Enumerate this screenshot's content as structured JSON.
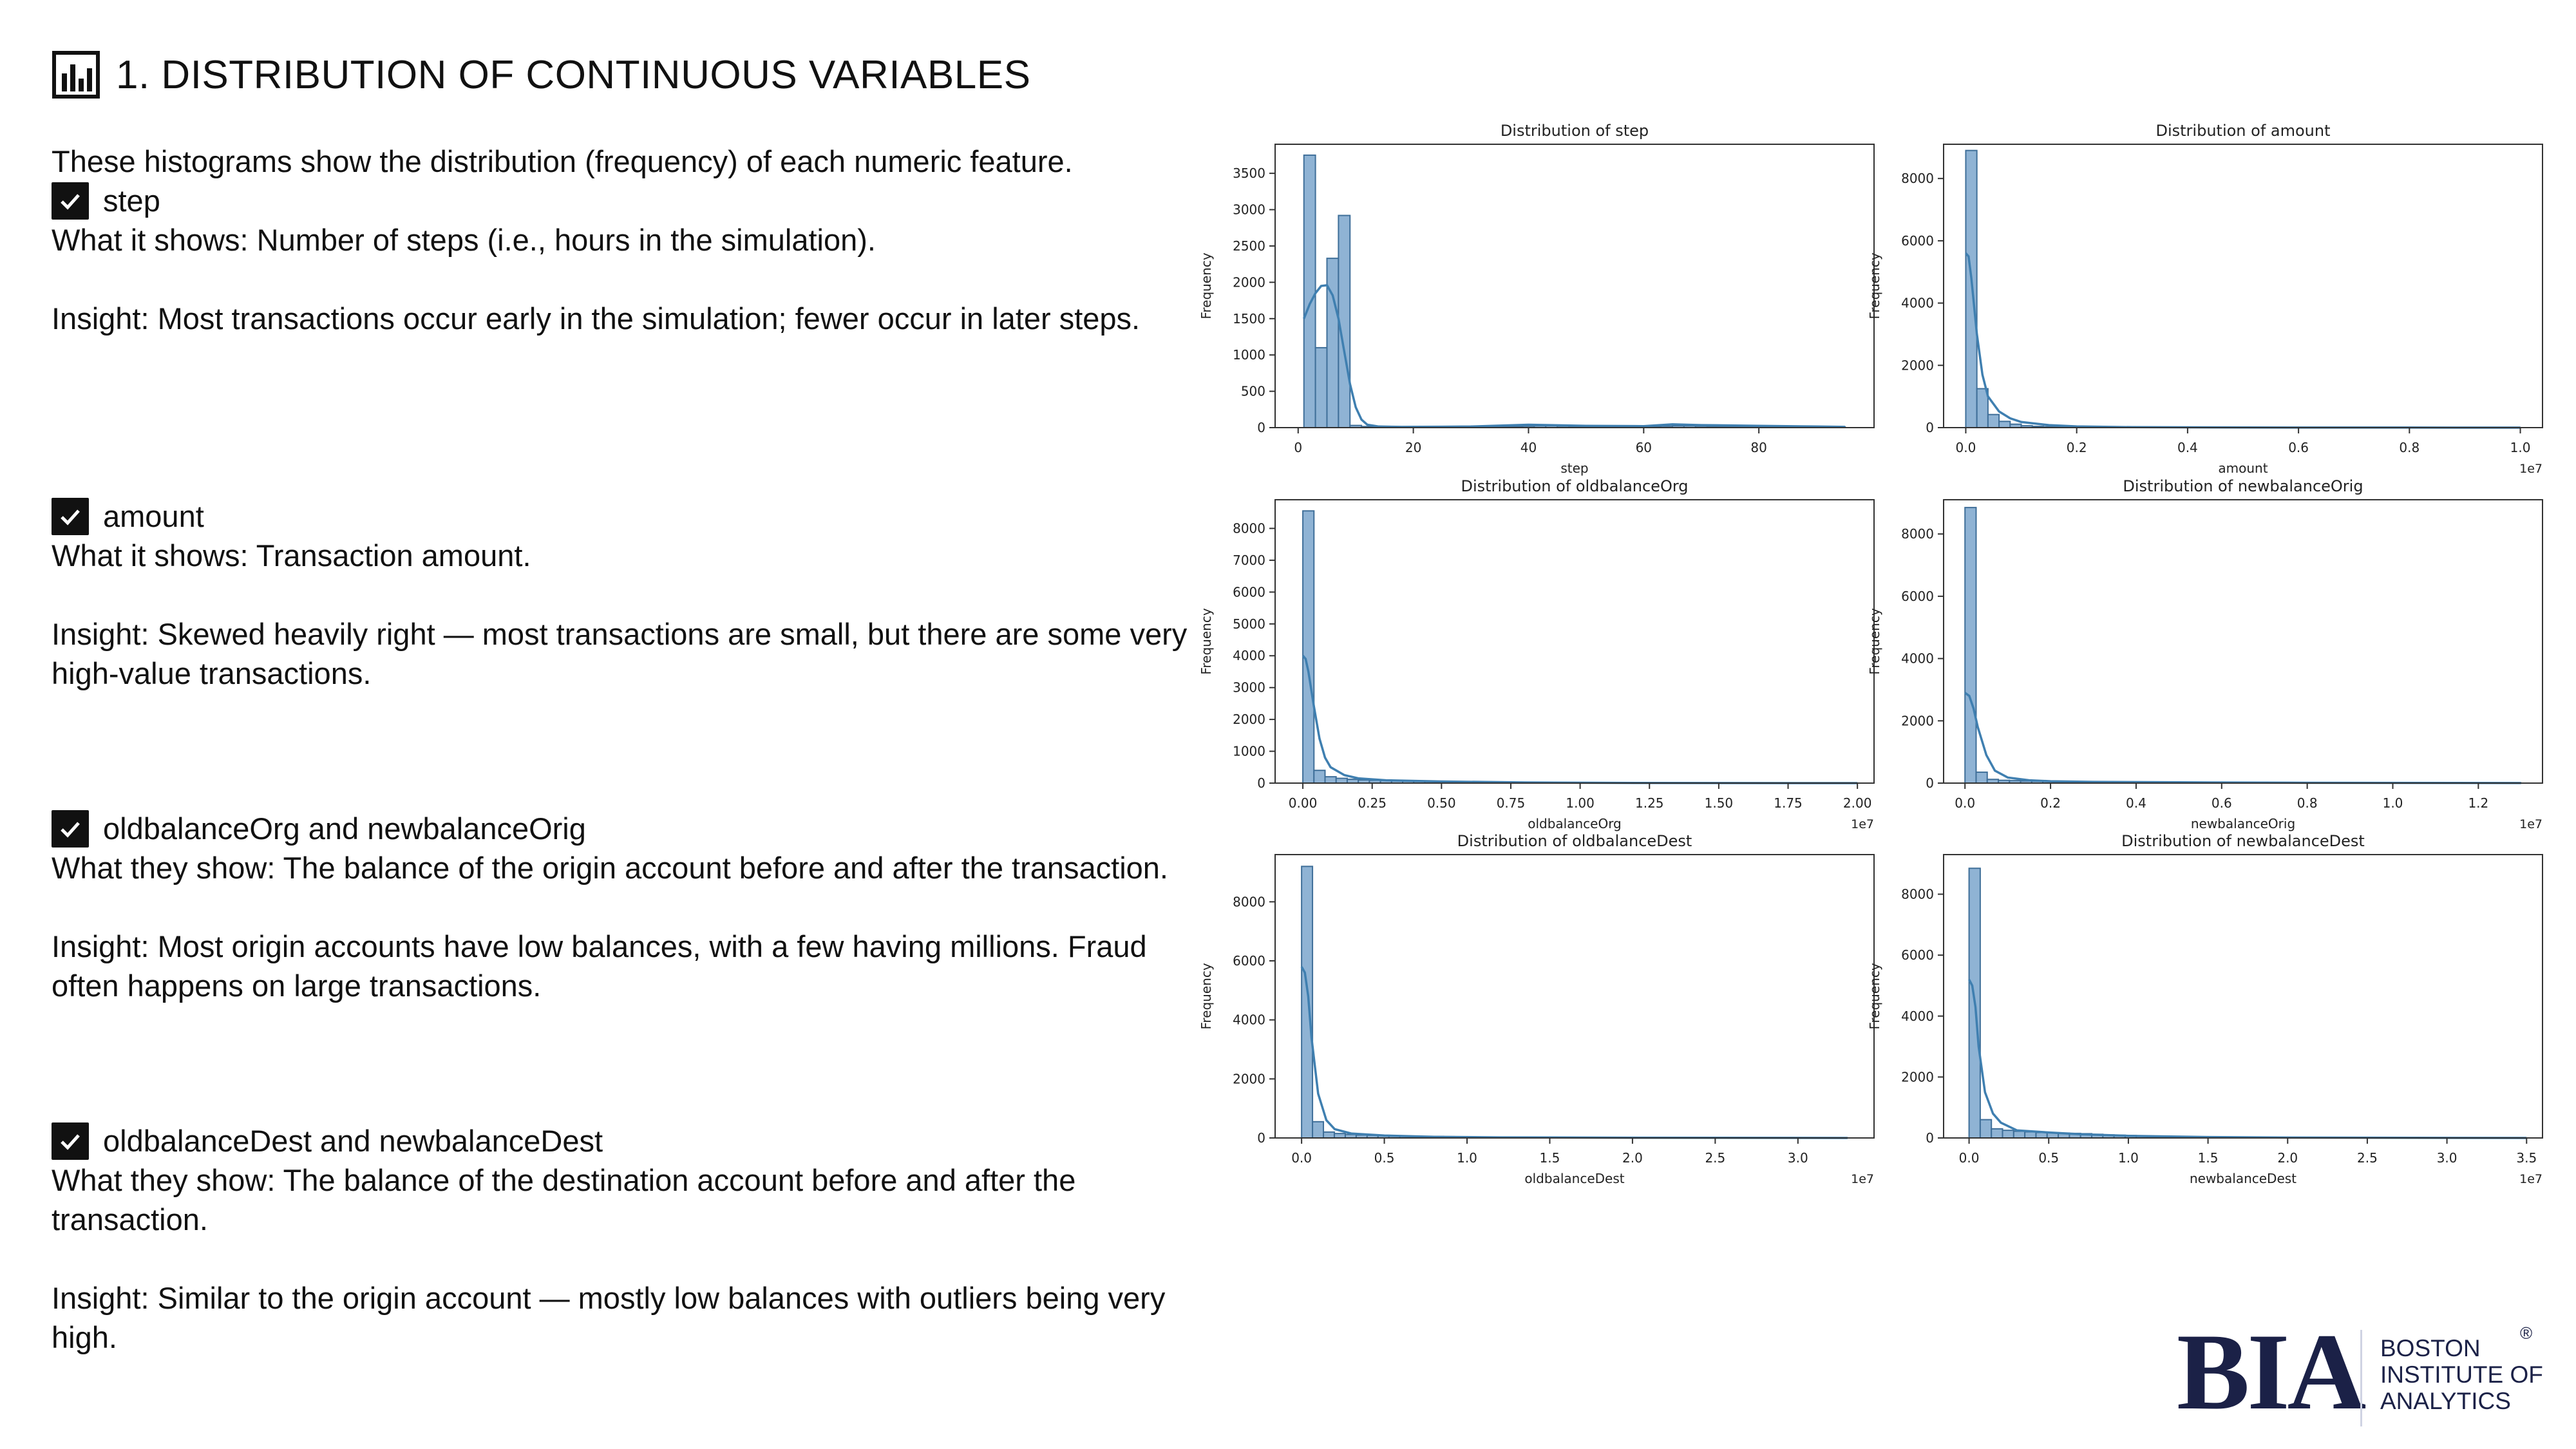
{
  "slide": {
    "title": "1. DISTRIBUTION OF CONTINUOUS VARIABLES",
    "intro": "These histograms show the distribution (frequency) of each numeric feature.",
    "sections": [
      {
        "heading": "step",
        "lines": [
          "What it shows: Number of steps (i.e., hours in the simulation).",
          "",
          "Insight: Most transactions occur early in the simulation; fewer occur in later steps."
        ]
      },
      {
        "heading": "amount",
        "lines": [
          "What it shows: Transaction amount.",
          "",
          "Insight: Skewed heavily right — most transactions are small, but there are some very high-value transactions."
        ]
      },
      {
        "heading": "oldbalanceOrg and newbalanceOrig",
        "lines": [
          "What they show: The balance of the origin account before and after the transaction.",
          "",
          "Insight: Most origin accounts have low balances, with a few having millions. Fraud often happens on large transactions."
        ]
      },
      {
        "heading": "oldbalanceDest and newbalanceDest",
        "lines": [
          "What they show: The balance of the destination account before and after the transaction.",
          "",
          "Insight: Similar to the origin account — mostly low balances with outliers being very high."
        ]
      }
    ],
    "icons": {
      "title": "bar-chart-icon",
      "checkbox": "checkbox-checked-icon"
    },
    "logo": {
      "mark": "BIA",
      "name_lines": [
        "BOSTON",
        "INSTITUTE OF",
        "ANALYTICS"
      ],
      "reg": "®"
    }
  },
  "colors": {
    "bar_fill": "#8fb3d4",
    "bar_edge": "#3f6f99",
    "kde": "#3f7fb0",
    "axis": "#333333",
    "logo": "#1b2147"
  },
  "chart_data": [
    {
      "type": "bar",
      "title": "Distribution of step",
      "xlabel": "step",
      "ylabel": "Frequency",
      "offset_text": "",
      "xlim": [
        -4,
        100
      ],
      "ylim": [
        0,
        3900
      ],
      "xticks": [
        0,
        20,
        40,
        60,
        80
      ],
      "xtick_labels": [
        "0",
        "20",
        "40",
        "60",
        "80"
      ],
      "yticks": [
        0,
        500,
        1000,
        1500,
        2000,
        2500,
        3000,
        3500
      ],
      "ytick_labels": [
        "0",
        "500",
        "1000",
        "1500",
        "2000",
        "2500",
        "3000",
        "3500"
      ],
      "bin_edges": [
        1,
        3,
        5,
        7,
        9,
        11,
        13,
        15,
        17,
        19,
        21,
        23,
        25,
        27,
        29,
        31,
        33,
        35,
        37,
        39,
        41,
        43,
        45,
        47,
        49,
        51,
        53,
        55,
        57,
        59,
        61,
        63,
        65,
        67,
        69,
        71,
        73,
        75,
        77,
        79,
        81,
        83,
        85,
        87,
        89,
        91,
        93,
        95
      ],
      "counts": [
        3750,
        1100,
        2330,
        2920,
        30,
        15,
        10,
        8,
        8,
        8,
        8,
        8,
        8,
        8,
        8,
        8,
        10,
        10,
        15,
        20,
        25,
        25,
        20,
        15,
        10,
        10,
        10,
        10,
        10,
        10,
        15,
        20,
        25,
        25,
        20,
        15,
        10,
        10,
        10,
        10,
        10,
        10,
        10,
        8,
        8,
        8,
        8
      ],
      "kde_x": [
        1,
        2,
        3,
        4,
        5,
        6,
        7,
        8,
        9,
        10,
        11,
        12,
        14,
        18,
        25,
        30,
        40,
        50,
        60,
        65,
        70,
        80,
        90,
        95
      ],
      "kde_y": [
        1500,
        1700,
        1850,
        1950,
        1960,
        1820,
        1500,
        1050,
        600,
        280,
        110,
        40,
        15,
        10,
        12,
        15,
        40,
        25,
        20,
        45,
        35,
        25,
        15,
        10
      ]
    },
    {
      "type": "bar",
      "title": "Distribution of amount",
      "xlabel": "amount",
      "ylabel": "Frequency",
      "offset_text": "1e7",
      "xlim": [
        -0.04,
        1.04
      ],
      "ylim": [
        0,
        9100
      ],
      "xticks": [
        0,
        0.2,
        0.4,
        0.6,
        0.8,
        1.0
      ],
      "xtick_labels": [
        "0.0",
        "0.2",
        "0.4",
        "0.6",
        "0.8",
        "1.0"
      ],
      "yticks": [
        0,
        2000,
        4000,
        6000,
        8000
      ],
      "ytick_labels": [
        "0",
        "2000",
        "4000",
        "6000",
        "8000"
      ],
      "bin_edges": [
        0,
        0.02,
        0.04,
        0.06,
        0.08,
        0.1,
        0.12,
        0.14,
        0.16,
        0.18,
        0.2,
        0.22,
        0.24,
        0.26,
        0.28,
        0.3,
        0.32,
        0.34,
        0.36,
        0.38,
        0.4,
        0.42,
        0.44,
        0.46,
        0.48,
        0.5,
        0.52,
        0.54,
        0.56,
        0.58,
        0.6,
        0.62,
        0.64,
        0.66,
        0.68,
        0.7,
        0.72,
        0.74,
        0.76,
        0.78,
        0.8,
        0.82,
        0.84,
        0.86,
        0.88,
        0.9,
        0.92,
        0.94,
        0.96,
        0.98,
        1.0
      ],
      "counts": [
        8900,
        1250,
        420,
        200,
        110,
        60,
        40,
        30,
        20,
        15,
        12,
        10,
        8,
        6,
        5,
        4,
        4,
        3,
        3,
        3,
        2,
        2,
        2,
        2,
        2,
        2,
        2,
        2,
        2,
        2,
        2,
        2,
        2,
        2,
        2,
        2,
        2,
        2,
        2,
        2,
        2,
        2,
        2,
        2,
        2,
        2,
        2,
        2,
        2,
        2
      ],
      "kde_x": [
        0,
        0.005,
        0.01,
        0.02,
        0.03,
        0.04,
        0.06,
        0.08,
        0.1,
        0.15,
        0.2,
        0.3,
        0.5,
        0.8,
        1.0
      ],
      "kde_y": [
        5600,
        5500,
        4800,
        3000,
        1700,
        1000,
        520,
        300,
        180,
        80,
        40,
        15,
        5,
        2,
        1
      ]
    },
    {
      "type": "bar",
      "title": "Distribution of oldbalanceOrg",
      "xlabel": "oldbalanceOrg",
      "ylabel": "Frequency",
      "offset_text": "1e7",
      "xlim": [
        -0.1,
        2.06
      ],
      "ylim": [
        0,
        8900
      ],
      "xticks": [
        0,
        0.25,
        0.5,
        0.75,
        1.0,
        1.25,
        1.5,
        1.75,
        2.0
      ],
      "xtick_labels": [
        "0.00",
        "0.25",
        "0.50",
        "0.75",
        "1.00",
        "1.25",
        "1.50",
        "1.75",
        "2.00"
      ],
      "yticks": [
        0,
        1000,
        2000,
        3000,
        4000,
        5000,
        6000,
        7000,
        8000
      ],
      "ytick_labels": [
        "0",
        "1000",
        "2000",
        "3000",
        "4000",
        "5000",
        "6000",
        "7000",
        "8000"
      ],
      "bin_edges": [
        0,
        0.04,
        0.08,
        0.12,
        0.16,
        0.2,
        0.24,
        0.28,
        0.32,
        0.36,
        0.4,
        0.44,
        0.48,
        0.52,
        0.56,
        0.6,
        0.64,
        0.68,
        0.72,
        0.76,
        0.8,
        0.84,
        0.88,
        0.92,
        0.96,
        1.0,
        1.04,
        1.08,
        1.12,
        1.16,
        1.2,
        1.24,
        1.28,
        1.32,
        1.36,
        1.4,
        1.44,
        1.48,
        1.52,
        1.56,
        1.6,
        1.64,
        1.68,
        1.72,
        1.76,
        1.8,
        1.84,
        1.88,
        1.92,
        1.96,
        2.0
      ],
      "counts": [
        8550,
        400,
        200,
        150,
        120,
        100,
        90,
        80,
        70,
        60,
        55,
        50,
        45,
        40,
        35,
        30,
        28,
        25,
        22,
        20,
        18,
        16,
        14,
        12,
        10,
        10,
        8,
        8,
        6,
        6,
        5,
        5,
        4,
        4,
        4,
        3,
        3,
        3,
        3,
        2,
        2,
        2,
        2,
        2,
        2,
        2,
        2,
        2,
        2,
        2
      ],
      "kde_x": [
        0,
        0.01,
        0.02,
        0.04,
        0.06,
        0.08,
        0.1,
        0.15,
        0.2,
        0.3,
        0.5,
        0.8,
        1.2,
        2.0
      ],
      "kde_y": [
        4000,
        3900,
        3500,
        2400,
        1400,
        800,
        500,
        250,
        150,
        90,
        50,
        20,
        5,
        1
      ]
    },
    {
      "type": "bar",
      "title": "Distribution of newbalanceOrig",
      "xlabel": "newbalanceOrig",
      "ylabel": "Frequency",
      "offset_text": "1e7",
      "xlim": [
        -0.05,
        1.35
      ],
      "ylim": [
        0,
        9100
      ],
      "xticks": [
        0,
        0.2,
        0.4,
        0.6,
        0.8,
        1.0,
        1.2
      ],
      "xtick_labels": [
        "0.0",
        "0.2",
        "0.4",
        "0.6",
        "0.8",
        "1.0",
        "1.2"
      ],
      "yticks": [
        0,
        2000,
        4000,
        6000,
        8000
      ],
      "ytick_labels": [
        "0",
        "2000",
        "4000",
        "6000",
        "8000"
      ],
      "bin_edges": [
        0,
        0.026,
        0.052,
        0.078,
        0.104,
        0.13,
        0.156,
        0.182,
        0.208,
        0.234,
        0.26,
        0.286,
        0.312,
        0.338,
        0.364,
        0.39,
        0.416,
        0.442,
        0.468,
        0.494,
        0.52,
        0.546,
        0.572,
        0.598,
        0.624,
        0.65,
        0.676,
        0.702,
        0.728,
        0.754,
        0.78,
        0.806,
        0.832,
        0.858,
        0.884,
        0.91,
        0.936,
        0.962,
        0.988,
        1.014,
        1.04,
        1.066,
        1.092,
        1.118,
        1.144,
        1.17,
        1.196,
        1.222,
        1.248,
        1.274,
        1.3
      ],
      "counts": [
        8850,
        350,
        120,
        90,
        80,
        70,
        65,
        60,
        55,
        50,
        45,
        40,
        38,
        35,
        32,
        30,
        28,
        26,
        24,
        22,
        20,
        18,
        16,
        14,
        12,
        10,
        9,
        8,
        7,
        6,
        5,
        5,
        4,
        4,
        4,
        3,
        3,
        3,
        3,
        2,
        2,
        2,
        2,
        2,
        2,
        2,
        2,
        2,
        2,
        2
      ],
      "kde_x": [
        0,
        0.01,
        0.02,
        0.03,
        0.05,
        0.07,
        0.1,
        0.15,
        0.2,
        0.3,
        0.5,
        0.8,
        1.3
      ],
      "kde_y": [
        2900,
        2800,
        2400,
        1800,
        900,
        400,
        180,
        90,
        60,
        40,
        25,
        10,
        2
      ]
    },
    {
      "type": "bar",
      "title": "Distribution of oldbalanceDest",
      "xlabel": "oldbalanceDest",
      "ylabel": "Frequency",
      "offset_text": "1e7",
      "xlim": [
        -0.16,
        3.46
      ],
      "ylim": [
        0,
        9600
      ],
      "xticks": [
        0,
        0.5,
        1.0,
        1.5,
        2.0,
        2.5,
        3.0
      ],
      "xtick_labels": [
        "0.0",
        "0.5",
        "1.0",
        "1.5",
        "2.0",
        "2.5",
        "3.0"
      ],
      "yticks": [
        0,
        2000,
        4000,
        6000,
        8000
      ],
      "ytick_labels": [
        "0",
        "2000",
        "4000",
        "6000",
        "8000"
      ],
      "bin_edges": [
        0,
        0.066,
        0.132,
        0.198,
        0.264,
        0.33,
        0.396,
        0.462,
        0.528,
        0.594,
        0.66,
        0.726,
        0.792,
        0.858,
        0.924,
        0.99,
        1.056,
        1.122,
        1.188,
        1.254,
        1.32,
        1.386,
        1.452,
        1.518,
        1.584,
        1.65,
        1.716,
        1.782,
        1.848,
        1.914,
        1.98,
        2.046,
        2.112,
        2.178,
        2.244,
        2.31,
        2.376,
        2.442,
        2.508,
        2.574,
        2.64,
        2.706,
        2.772,
        2.838,
        2.904,
        2.97,
        3.036,
        3.102,
        3.168,
        3.234,
        3.3
      ],
      "counts": [
        9200,
        550,
        200,
        150,
        120,
        100,
        90,
        80,
        70,
        65,
        60,
        55,
        50,
        45,
        40,
        35,
        30,
        28,
        25,
        22,
        20,
        18,
        16,
        14,
        12,
        10,
        10,
        9,
        8,
        7,
        6,
        5,
        5,
        4,
        4,
        3,
        3,
        3,
        3,
        2,
        2,
        2,
        2,
        2,
        2,
        2,
        2,
        2,
        2,
        2
      ],
      "kde_x": [
        0,
        0.02,
        0.04,
        0.06,
        0.1,
        0.15,
        0.2,
        0.3,
        0.5,
        0.8,
        1.2,
        2.0,
        3.3
      ],
      "kde_y": [
        5800,
        5600,
        4800,
        3400,
        1500,
        600,
        300,
        150,
        80,
        40,
        20,
        8,
        1
      ]
    },
    {
      "type": "bar",
      "title": "Distribution of newbalanceDest",
      "xlabel": "newbalanceDest",
      "ylabel": "Frequency",
      "offset_text": "1e7",
      "xlim": [
        -0.16,
        3.6
      ],
      "ylim": [
        0,
        9300
      ],
      "xticks": [
        0,
        0.5,
        1.0,
        1.5,
        2.0,
        2.5,
        3.0,
        3.5
      ],
      "xtick_labels": [
        "0.0",
        "0.5",
        "1.0",
        "1.5",
        "2.0",
        "2.5",
        "3.0",
        "3.5"
      ],
      "yticks": [
        0,
        2000,
        4000,
        6000,
        8000
      ],
      "ytick_labels": [
        "0",
        "2000",
        "4000",
        "6000",
        "8000"
      ],
      "bin_edges": [
        0,
        0.07,
        0.14,
        0.21,
        0.28,
        0.35,
        0.42,
        0.49,
        0.56,
        0.63,
        0.7,
        0.77,
        0.84,
        0.91,
        0.98,
        1.05,
        1.12,
        1.19,
        1.26,
        1.33,
        1.4,
        1.47,
        1.54,
        1.61,
        1.68,
        1.75,
        1.82,
        1.89,
        1.96,
        2.03,
        2.1,
        2.17,
        2.24,
        2.31,
        2.38,
        2.45,
        2.52,
        2.59,
        2.66,
        2.73,
        2.8,
        2.87,
        2.94,
        3.01,
        3.08,
        3.15,
        3.22,
        3.29,
        3.36,
        3.43,
        3.5
      ],
      "counts": [
        8850,
        600,
        300,
        250,
        220,
        200,
        180,
        170,
        160,
        150,
        140,
        120,
        100,
        90,
        80,
        70,
        60,
        55,
        50,
        45,
        40,
        35,
        30,
        28,
        25,
        22,
        20,
        18,
        16,
        14,
        12,
        10,
        9,
        8,
        7,
        6,
        5,
        5,
        4,
        4,
        3,
        3,
        3,
        3,
        2,
        2,
        2,
        2,
        2,
        2
      ],
      "kde_x": [
        0,
        0.02,
        0.04,
        0.06,
        0.1,
        0.15,
        0.2,
        0.3,
        0.5,
        0.7,
        1.0,
        1.5,
        2.0,
        3.5
      ],
      "kde_y": [
        5200,
        5000,
        4300,
        3000,
        1500,
        800,
        500,
        250,
        180,
        120,
        70,
        30,
        12,
        1
      ]
    }
  ]
}
